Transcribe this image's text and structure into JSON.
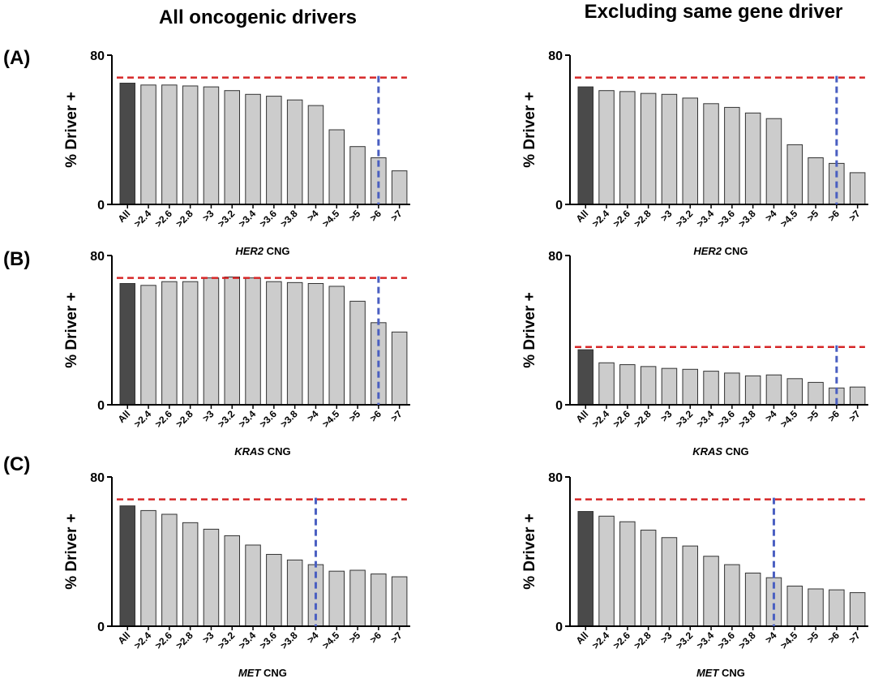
{
  "column_titles": [
    "All oncogenic drivers",
    "Excluding same gene driver"
  ],
  "row_labels": [
    "(A)",
    "(B)",
    "(C)"
  ],
  "colors": {
    "all_bar": "#4a4a4a",
    "bar": "#cccccc",
    "bar_stroke": "#333333",
    "ref_line": "#d62728",
    "cutoff_line": "#4a5fc1"
  },
  "chart_data": [
    {
      "type": "bar",
      "row": 0,
      "col": 0,
      "ylabel": "% Driver +",
      "xlabel_gene": "HER2",
      "xlabel_suffix": " CNG",
      "ylim": [
        0,
        80
      ],
      "yticks": [
        0,
        80
      ],
      "categories": [
        "All",
        ">2.4",
        ">2.6",
        ">2.8",
        ">3",
        ">3.2",
        ">3.4",
        ">3.6",
        ">3.8",
        ">4",
        ">4.5",
        ">5",
        ">6",
        ">7"
      ],
      "values": [
        65,
        64,
        64,
        63.5,
        63,
        61,
        59,
        58,
        56,
        53,
        40,
        31,
        25,
        18
      ],
      "reference_line": 68,
      "cutoff_category": ">6"
    },
    {
      "type": "bar",
      "row": 0,
      "col": 1,
      "ylabel": "% Driver +",
      "xlabel_gene": "HER2",
      "xlabel_suffix": " CNG",
      "ylim": [
        0,
        80
      ],
      "yticks": [
        0,
        80
      ],
      "categories": [
        "All",
        ">2.4",
        ">2.6",
        ">2.8",
        ">3",
        ">3.2",
        ">3.4",
        ">3.6",
        ">3.8",
        ">4",
        ">4.5",
        ">5",
        ">6",
        ">7"
      ],
      "values": [
        63,
        61,
        60.5,
        59.5,
        59,
        57,
        54,
        52,
        49,
        46,
        32,
        25,
        22,
        17
      ],
      "reference_line": 68,
      "cutoff_category": ">6"
    },
    {
      "type": "bar",
      "row": 1,
      "col": 0,
      "ylabel": "% Driver +",
      "xlabel_gene": "KRAS",
      "xlabel_suffix": " CNG",
      "ylim": [
        0,
        80
      ],
      "yticks": [
        0,
        80
      ],
      "categories": [
        "All",
        ">2.4",
        ">2.6",
        ">2.8",
        ">3",
        ">3.2",
        ">3.4",
        ">3.6",
        ">3.8",
        ">4",
        ">4.5",
        ">5",
        ">6",
        ">7"
      ],
      "values": [
        65,
        64,
        66,
        66,
        68,
        68.5,
        68,
        66,
        65.5,
        65,
        63.5,
        55.5,
        44,
        39
      ],
      "reference_line": 68,
      "cutoff_category": ">6"
    },
    {
      "type": "bar",
      "row": 1,
      "col": 1,
      "ylabel": "% Driver +",
      "xlabel_gene": "KRAS",
      "xlabel_suffix": " CNG",
      "ylim": [
        0,
        80
      ],
      "yticks": [
        0,
        80
      ],
      "categories": [
        "All",
        ">2.4",
        ">2.6",
        ">2.8",
        ">3",
        ">3.2",
        ">3.4",
        ">3.6",
        ">3.8",
        ">4",
        ">4.5",
        ">5",
        ">6",
        ">7"
      ],
      "values": [
        29.5,
        22.5,
        21.5,
        20.5,
        19.5,
        19,
        18,
        17,
        15.5,
        16,
        14,
        12,
        9,
        9.5
      ],
      "reference_line": 31,
      "cutoff_category": ">6"
    },
    {
      "type": "bar",
      "row": 2,
      "col": 0,
      "ylabel": "% Driver +",
      "xlabel_gene": "MET",
      "xlabel_suffix": " CNG",
      "ylim": [
        0,
        80
      ],
      "yticks": [
        0,
        80
      ],
      "categories": [
        "All",
        ">2.4",
        ">2.6",
        ">2.8",
        ">3",
        ">3.2",
        ">3.4",
        ">3.6",
        ">3.8",
        ">4",
        ">4.5",
        ">5",
        ">6",
        ">7"
      ],
      "values": [
        64.5,
        62,
        60,
        55.5,
        52,
        48.5,
        43.5,
        38.5,
        35.5,
        33,
        29.5,
        30,
        28,
        26.5
      ],
      "reference_line": 68,
      "cutoff_category": ">4"
    },
    {
      "type": "bar",
      "row": 2,
      "col": 1,
      "ylabel": "% Driver +",
      "xlabel_gene": "MET",
      "xlabel_suffix": " CNG",
      "ylim": [
        0,
        80
      ],
      "yticks": [
        0,
        80
      ],
      "categories": [
        "All",
        ">2.4",
        ">2.6",
        ">2.8",
        ">3",
        ">3.2",
        ">3.4",
        ">3.6",
        ">3.8",
        ">4",
        ">4.5",
        ">5",
        ">6",
        ">7"
      ],
      "values": [
        61.5,
        59,
        56,
        51.5,
        47.5,
        43,
        37.5,
        33,
        28.5,
        26,
        21.5,
        20,
        19.5,
        18
      ],
      "reference_line": 68,
      "cutoff_category": ">4"
    }
  ]
}
